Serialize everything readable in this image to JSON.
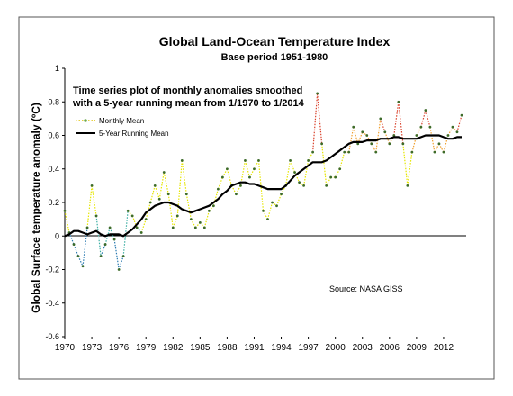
{
  "chart_data": {
    "type": "line",
    "title": "Global Land-Ocean Temperature Index",
    "subtitle": "Base period 1951-1980",
    "annotation_lines": [
      "Time series plot of monthly anomalies smoothed",
      "with a 5-year running mean from 1/1970 to 1/2014"
    ],
    "ylabel": "Global Surface temperature anomaly (ºC)",
    "xlabel": "",
    "source": "Source: NASA GISS",
    "xlim": [
      1970,
      2014.5
    ],
    "ylim": [
      -0.6,
      1.0
    ],
    "x_ticks": [
      "1970",
      "1973",
      "1976",
      "1979",
      "1982",
      "1985",
      "1988",
      "1991",
      "1994",
      "1997",
      "2000",
      "2003",
      "2006",
      "2009",
      "2012"
    ],
    "y_ticks": [
      "-0.6",
      "-0.4",
      "-0.2",
      "0",
      "0.2",
      "0.4",
      "0.6",
      "0.8",
      "1"
    ],
    "grid": false,
    "legend_placement": "upper-left",
    "series": [
      {
        "name": "Monthly Mean",
        "style": "dotted-points colored by value",
        "x": [
          1970.0,
          1970.5,
          1971.0,
          1971.5,
          1972.0,
          1972.5,
          1973.0,
          1973.5,
          1974.0,
          1974.5,
          1975.0,
          1975.5,
          1976.0,
          1976.5,
          1977.0,
          1977.5,
          1978.0,
          1978.5,
          1979.0,
          1979.5,
          1980.0,
          1980.5,
          1981.0,
          1981.5,
          1982.0,
          1982.5,
          1983.0,
          1983.5,
          1984.0,
          1984.5,
          1985.0,
          1985.5,
          1986.0,
          1986.5,
          1987.0,
          1987.5,
          1988.0,
          1988.5,
          1989.0,
          1989.5,
          1990.0,
          1990.5,
          1991.0,
          1991.5,
          1992.0,
          1992.5,
          1993.0,
          1993.5,
          1994.0,
          1994.5,
          1995.0,
          1995.5,
          1996.0,
          1996.5,
          1997.0,
          1997.5,
          1998.0,
          1998.5,
          1999.0,
          1999.5,
          2000.0,
          2000.5,
          2001.0,
          2001.5,
          2002.0,
          2002.5,
          2003.0,
          2003.5,
          2004.0,
          2004.5,
          2005.0,
          2005.5,
          2006.0,
          2006.5,
          2007.0,
          2007.5,
          2008.0,
          2008.5,
          2009.0,
          2009.5,
          2010.0,
          2010.5,
          2011.0,
          2011.5,
          2012.0,
          2012.5,
          2013.0,
          2013.5,
          2014.0
        ],
        "values": [
          0.15,
          0.02,
          -0.05,
          -0.12,
          -0.18,
          0.05,
          0.3,
          0.12,
          -0.12,
          -0.05,
          0.05,
          -0.02,
          -0.2,
          -0.12,
          0.15,
          0.12,
          0.05,
          0.02,
          0.1,
          0.2,
          0.3,
          0.22,
          0.38,
          0.25,
          0.05,
          0.12,
          0.45,
          0.25,
          0.1,
          0.05,
          0.08,
          0.05,
          0.15,
          0.18,
          0.28,
          0.35,
          0.4,
          0.3,
          0.25,
          0.3,
          0.45,
          0.35,
          0.4,
          0.45,
          0.15,
          0.1,
          0.2,
          0.18,
          0.25,
          0.3,
          0.45,
          0.38,
          0.32,
          0.3,
          0.45,
          0.5,
          0.85,
          0.55,
          0.3,
          0.35,
          0.35,
          0.4,
          0.5,
          0.5,
          0.65,
          0.55,
          0.62,
          0.6,
          0.55,
          0.5,
          0.7,
          0.62,
          0.55,
          0.6,
          0.8,
          0.55,
          0.3,
          0.5,
          0.6,
          0.65,
          0.75,
          0.65,
          0.5,
          0.55,
          0.5,
          0.6,
          0.65,
          0.62,
          0.72
        ]
      },
      {
        "name": "5-Year Running Mean",
        "style": "solid black line",
        "x": [
          1970.0,
          1970.5,
          1971.0,
          1971.5,
          1972.0,
          1972.5,
          1973.0,
          1973.5,
          1974.0,
          1974.5,
          1975.0,
          1975.5,
          1976.0,
          1976.5,
          1977.0,
          1977.5,
          1978.0,
          1978.5,
          1979.0,
          1979.5,
          1980.0,
          1980.5,
          1981.0,
          1981.5,
          1982.0,
          1982.5,
          1983.0,
          1983.5,
          1984.0,
          1984.5,
          1985.0,
          1985.5,
          1986.0,
          1986.5,
          1987.0,
          1987.5,
          1988.0,
          1988.5,
          1989.0,
          1989.5,
          1990.0,
          1990.5,
          1991.0,
          1991.5,
          1992.0,
          1992.5,
          1993.0,
          1993.5,
          1994.0,
          1994.5,
          1995.0,
          1995.5,
          1996.0,
          1996.5,
          1997.0,
          1997.5,
          1998.0,
          1998.5,
          1999.0,
          1999.5,
          2000.0,
          2000.5,
          2001.0,
          2001.5,
          2002.0,
          2002.5,
          2003.0,
          2003.5,
          2004.0,
          2004.5,
          2005.0,
          2005.5,
          2006.0,
          2006.5,
          2007.0,
          2007.5,
          2008.0,
          2008.5,
          2009.0,
          2009.5,
          2010.0,
          2010.5,
          2011.0,
          2011.5,
          2012.0,
          2012.5,
          2013.0,
          2013.5,
          2014.0
        ],
        "values": [
          0.0,
          0.01,
          0.03,
          0.03,
          0.02,
          0.01,
          0.02,
          0.03,
          0.01,
          0.0,
          0.01,
          0.01,
          0.01,
          0.0,
          0.02,
          0.04,
          0.07,
          0.1,
          0.14,
          0.16,
          0.18,
          0.19,
          0.2,
          0.2,
          0.19,
          0.18,
          0.16,
          0.15,
          0.14,
          0.15,
          0.16,
          0.17,
          0.18,
          0.2,
          0.22,
          0.25,
          0.27,
          0.3,
          0.31,
          0.32,
          0.32,
          0.31,
          0.31,
          0.3,
          0.29,
          0.28,
          0.28,
          0.28,
          0.28,
          0.3,
          0.33,
          0.36,
          0.38,
          0.4,
          0.42,
          0.44,
          0.44,
          0.44,
          0.45,
          0.47,
          0.49,
          0.51,
          0.53,
          0.55,
          0.56,
          0.56,
          0.56,
          0.57,
          0.57,
          0.57,
          0.58,
          0.58,
          0.58,
          0.59,
          0.59,
          0.58,
          0.58,
          0.58,
          0.58,
          0.59,
          0.6,
          0.6,
          0.6,
          0.6,
          0.59,
          0.58,
          0.58,
          0.59,
          0.59
        ]
      }
    ]
  },
  "colors": {
    "frame_border": "#555555",
    "axis": "#000000",
    "running_mean": "#000000",
    "legend_monthly": "#6aa84f",
    "cold": "#2a7ab0",
    "cool": "#3caea3",
    "mild": "#e6e600",
    "warm": "#f0a030",
    "hot": "#d9402a"
  }
}
